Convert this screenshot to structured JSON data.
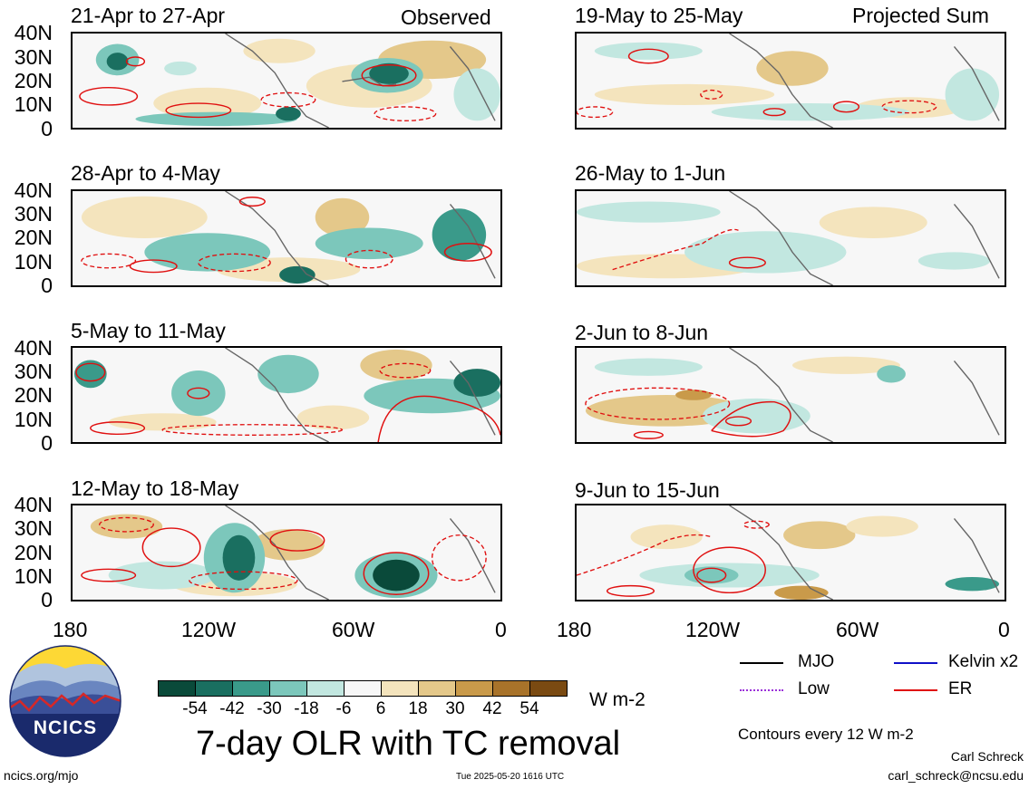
{
  "panels": {
    "observed": [
      {
        "title": "21-Apr to 27-Apr"
      },
      {
        "title": "28-Apr to 4-May"
      },
      {
        "title": "5-May to 11-May"
      },
      {
        "title": "12-May to 18-May"
      }
    ],
    "projected": [
      {
        "title": "19-May to 25-May"
      },
      {
        "title": "26-May to 1-Jun"
      },
      {
        "title": "2-Jun to 8-Jun"
      },
      {
        "title": "9-Jun to 15-Jun"
      }
    ],
    "observed_tag": "Observed",
    "projected_tag": "Projected Sum"
  },
  "axes": {
    "lat_ticks": [
      "40N",
      "30N",
      "20N",
      "10N",
      "0"
    ],
    "lon_ticks": [
      "180",
      "120W",
      "60W",
      "0"
    ]
  },
  "colorbar": {
    "colors": [
      "#0a4a3a",
      "#1a6f60",
      "#3a9a8a",
      "#7cc7bb",
      "#c2e7e0",
      "#f7f7f7",
      "#f4e4bd",
      "#e4c88a",
      "#c99a4a",
      "#a8732a",
      "#7a4a12"
    ],
    "tick_labels": [
      "-54",
      "-42",
      "-30",
      "-18",
      "-6",
      "6",
      "18",
      "30",
      "42",
      "54"
    ],
    "units": "W m-2"
  },
  "legend": {
    "items": [
      {
        "label": "MJO",
        "color": "#000000",
        "style": "solid"
      },
      {
        "label": "Kelvin x2",
        "color": "#1010c8",
        "style": "solid"
      },
      {
        "label": "Low",
        "color": "#9b30d9",
        "style": "dotted"
      },
      {
        "label": "ER",
        "color": "#e01010",
        "style": "solid"
      }
    ],
    "contour_note": "Contours every 12 W m-2"
  },
  "footer": {
    "main_title": "7-day OLR with TC removal",
    "logo_text": "NCICS",
    "url": "ncics.org/mjo",
    "timestamp": "Tue 2025-05-20 1616 UTC",
    "author": "Carl Schreck",
    "email": "carl_schreck@ncsu.edu"
  }
}
